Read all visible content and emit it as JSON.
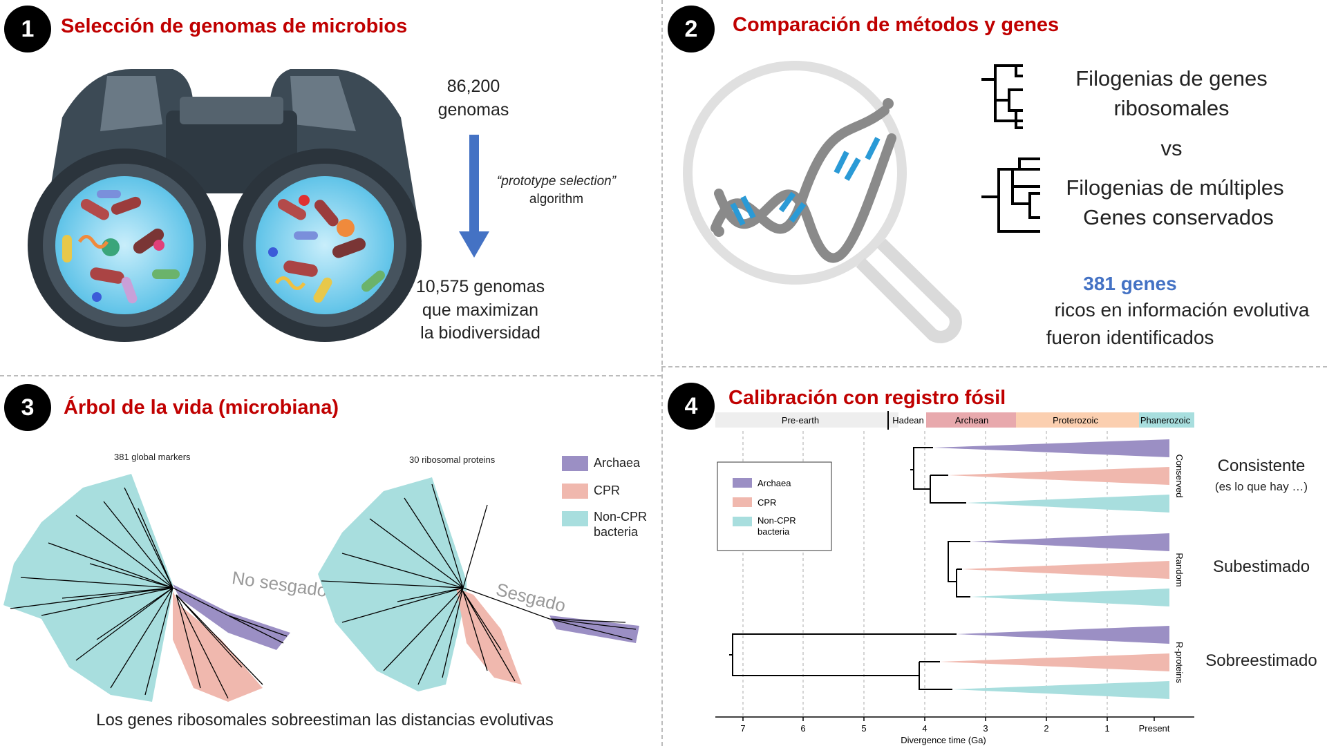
{
  "panel1": {
    "badge": "1",
    "title": "Selección de genomas de microbios",
    "count_top_number": "86,200",
    "count_top_unit": "genomas",
    "algorithm_name": "“prototype selection”",
    "algorithm_word": "algorithm",
    "result_line1": "10,575 genomas",
    "result_line2": "que maximizan",
    "result_line3": "la biodiversidad"
  },
  "panel2": {
    "badge": "2",
    "title": "Comparación de métodos y genes",
    "phylo1_line1": "Filogenias de genes",
    "phylo1_line2": "ribosomales",
    "vs": "vs",
    "phylo2_line1": "Filogenias de múltiples",
    "phylo2_line2": "Genes conservados",
    "genes_highlight": "381 genes",
    "genes_line2": "ricos en información evolutiva",
    "genes_line3": "fueron identificados",
    "highlight_color": "#4472c4"
  },
  "panel3": {
    "badge": "3",
    "title": "Árbol de la vida (microbiana)",
    "tree1_label": "381 global markers",
    "tree2_label": "30 ribosomal proteins",
    "tree1_annotation": "No sesgado",
    "tree2_annotation": "Sesgado",
    "legend": [
      {
        "label": "Archaea",
        "color": "#9b8fc4"
      },
      {
        "label": "CPR",
        "color": "#f0b8ae"
      },
      {
        "label": "Non-CPR",
        "color": "#a8dede"
      },
      {
        "label": "bacteria",
        "color": "#a8dede"
      }
    ],
    "caption": "Los genes ribosomales sobreestiman las distancias evolutivas"
  },
  "panel4": {
    "badge": "4",
    "title": "Calibración con registro fósil",
    "eons": [
      {
        "label": "Pre-earth",
        "color": "#eeeeee"
      },
      {
        "label": "Hadean",
        "color": "#eeeeee"
      },
      {
        "label": "Archean",
        "color": "#e8a9ad"
      },
      {
        "label": "Proterozoic",
        "color": "#fbcfb0"
      },
      {
        "label": "Phanerozoic",
        "color": "#a8dede"
      }
    ],
    "legend": [
      {
        "label": "Archaea",
        "color": "#9b8fc4"
      },
      {
        "label": "CPR",
        "color": "#f0b8ae"
      },
      {
        "label": "Non-CPR",
        "color": "#a8dede"
      },
      {
        "label": "bacteria",
        "color": "#a8dede"
      }
    ],
    "groups": [
      {
        "side_label": "Conserved",
        "result": "Consistente",
        "result_note": "(es lo que hay …)"
      },
      {
        "side_label": "Random",
        "result": "Subestimado",
        "result_note": ""
      },
      {
        "side_label": "R-proteins",
        "result": "Sobreestimado",
        "result_note": ""
      }
    ],
    "ticks": [
      "7",
      "6",
      "5",
      "4",
      "3",
      "2",
      "1",
      "Present"
    ],
    "xlabel": "Divergence time (Ga)"
  }
}
